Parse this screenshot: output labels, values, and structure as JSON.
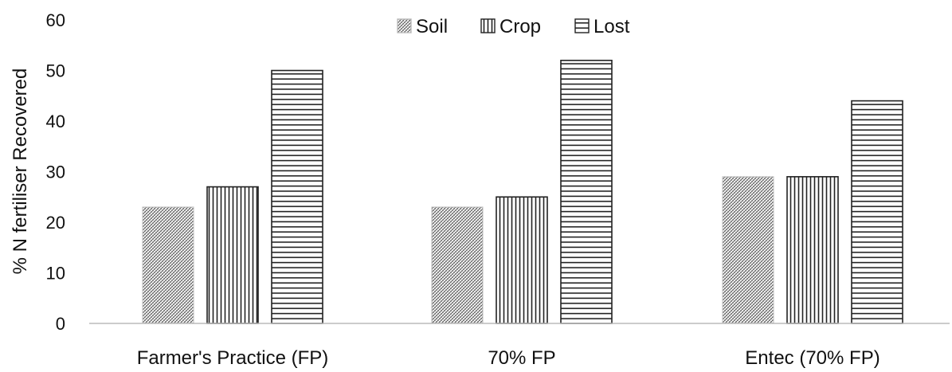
{
  "chart_data": {
    "type": "bar",
    "categories": [
      "Farmer's Practice (FP)",
      "70% FP",
      "Entec (70% FP)"
    ],
    "series": [
      {
        "name": "Soil",
        "values": [
          23,
          23,
          29
        ],
        "pattern": "crosshatch"
      },
      {
        "name": "Crop",
        "values": [
          27,
          25,
          29
        ],
        "pattern": "vertical"
      },
      {
        "name": "Lost",
        "values": [
          50,
          52,
          44
        ],
        "pattern": "horizontal"
      }
    ],
    "title": "",
    "xlabel": "",
    "ylabel": "% N fertiliser Recovered",
    "ylim": [
      0,
      60
    ],
    "yticks": [
      0,
      10,
      20,
      30,
      40,
      50,
      60
    ],
    "grid": false,
    "legend_position": "top-center",
    "colors": {
      "bar_stroke": "#222222",
      "pattern": "#333333",
      "axis": "#bbbbbb"
    }
  }
}
